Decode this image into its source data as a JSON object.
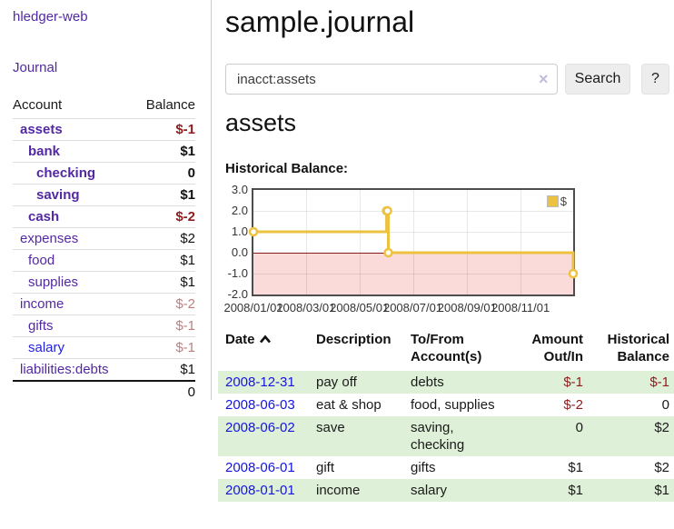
{
  "app": {
    "title": "hledger-web"
  },
  "sidebar": {
    "journal_link": "Journal",
    "accounts_table": {
      "account_header": "Account",
      "balance_header": "Balance",
      "rows": [
        {
          "name": "assets",
          "depth": 1,
          "bold": true,
          "balance": "$-1",
          "balance_style": "neg-strong"
        },
        {
          "name": "bank",
          "depth": 2,
          "bold": true,
          "balance": "$1",
          "balance_style": "normal-strong"
        },
        {
          "name": "checking",
          "depth": 3,
          "bold": true,
          "balance": "0",
          "balance_style": "normal-strong"
        },
        {
          "name": "saving",
          "depth": 3,
          "bold": true,
          "balance": "$1",
          "balance_style": "normal-strong"
        },
        {
          "name": "cash",
          "depth": 2,
          "bold": true,
          "balance": "$-2",
          "balance_style": "neg-strong"
        },
        {
          "name": "expenses",
          "depth": 1,
          "bold": false,
          "balance": "$2",
          "balance_style": "normal"
        },
        {
          "name": "food",
          "depth": 2,
          "bold": false,
          "balance": "$1",
          "balance_style": "normal"
        },
        {
          "name": "supplies",
          "depth": 2,
          "bold": false,
          "balance": "$1",
          "balance_style": "normal"
        },
        {
          "name": "income",
          "depth": 1,
          "bold": false,
          "balance": "$-2",
          "balance_style": "neg-soft"
        },
        {
          "name": "gifts",
          "depth": 2,
          "bold": false,
          "balance": "$-1",
          "balance_style": "neg-soft"
        },
        {
          "name": "salary",
          "depth": 2,
          "bold": false,
          "balance": "$-1",
          "balance_style": "neg-soft",
          "link_style": "unvisited"
        },
        {
          "name": "liabilities:debts",
          "depth": 1,
          "bold": false,
          "balance": "$1",
          "balance_style": "normal"
        }
      ],
      "total": "0"
    }
  },
  "main": {
    "title": "sample.journal",
    "search": {
      "value": "inacct:assets",
      "clear_icon": "×",
      "button_label": "Search",
      "help_label": "?"
    },
    "account_heading": "assets",
    "chart_title": "Historical Balance:"
  },
  "chart_data": {
    "type": "line",
    "step": true,
    "title": "Historical Balance",
    "legend": {
      "label": "$",
      "color": "#edc240",
      "position": "top-right"
    },
    "series": [
      {
        "name": "$",
        "color": "#edc240",
        "points": [
          [
            "2008-01-01",
            1
          ],
          [
            "2008-06-01",
            2
          ],
          [
            "2008-06-02",
            2
          ],
          [
            "2008-06-03",
            0
          ],
          [
            "2008-12-31",
            -1
          ]
        ]
      }
    ],
    "x_range": [
      "2008-01-01",
      "2008-12-31"
    ],
    "x_ticks": [
      {
        "date": "2008-01-01",
        "label": "2008/01/01"
      },
      {
        "date": "2008-03-01",
        "label": "2008/03/01"
      },
      {
        "date": "2008-05-01",
        "label": "2008/05/01"
      },
      {
        "date": "2008-07-01",
        "label": "2008/07/01"
      },
      {
        "date": "2008-09-01",
        "label": "2008/09/01"
      },
      {
        "date": "2008-11-01",
        "label": "2008/11/01"
      }
    ],
    "y_ticks": [
      "3.0",
      "2.0",
      "1.0",
      "0.0",
      "-1.0",
      "-2.0"
    ],
    "ylim": [
      -2,
      3
    ],
    "grid": true,
    "negative_region_color": "#fbdada",
    "zero_line_color": "#8b1a1a"
  },
  "register": {
    "headers": [
      {
        "label": "Date",
        "sortable": true
      },
      {
        "label": "Description"
      },
      {
        "label": "To/From Account(s)"
      },
      {
        "label": "Amount Out/In"
      },
      {
        "label": "Historical Balance"
      }
    ],
    "rows": [
      {
        "date": "2008-12-31",
        "description": "pay off",
        "accounts": "debts",
        "amount": "$-1",
        "amount_neg": true,
        "balance": "$-1",
        "balance_neg": true
      },
      {
        "date": "2008-06-03",
        "description": "eat & shop",
        "accounts": "food, supplies",
        "amount": "$-2",
        "amount_neg": true,
        "balance": "0",
        "balance_neg": false
      },
      {
        "date": "2008-06-02",
        "description": "save",
        "accounts": "saving, checking",
        "amount": "0",
        "amount_neg": false,
        "balance": "$2",
        "balance_neg": false
      },
      {
        "date": "2008-06-01",
        "description": "gift",
        "accounts": "gifts",
        "amount": "$1",
        "amount_neg": false,
        "balance": "$2",
        "balance_neg": false
      },
      {
        "date": "2008-01-01",
        "description": "income",
        "accounts": "salary",
        "amount": "$1",
        "amount_neg": false,
        "balance": "$1",
        "balance_neg": false
      }
    ]
  }
}
